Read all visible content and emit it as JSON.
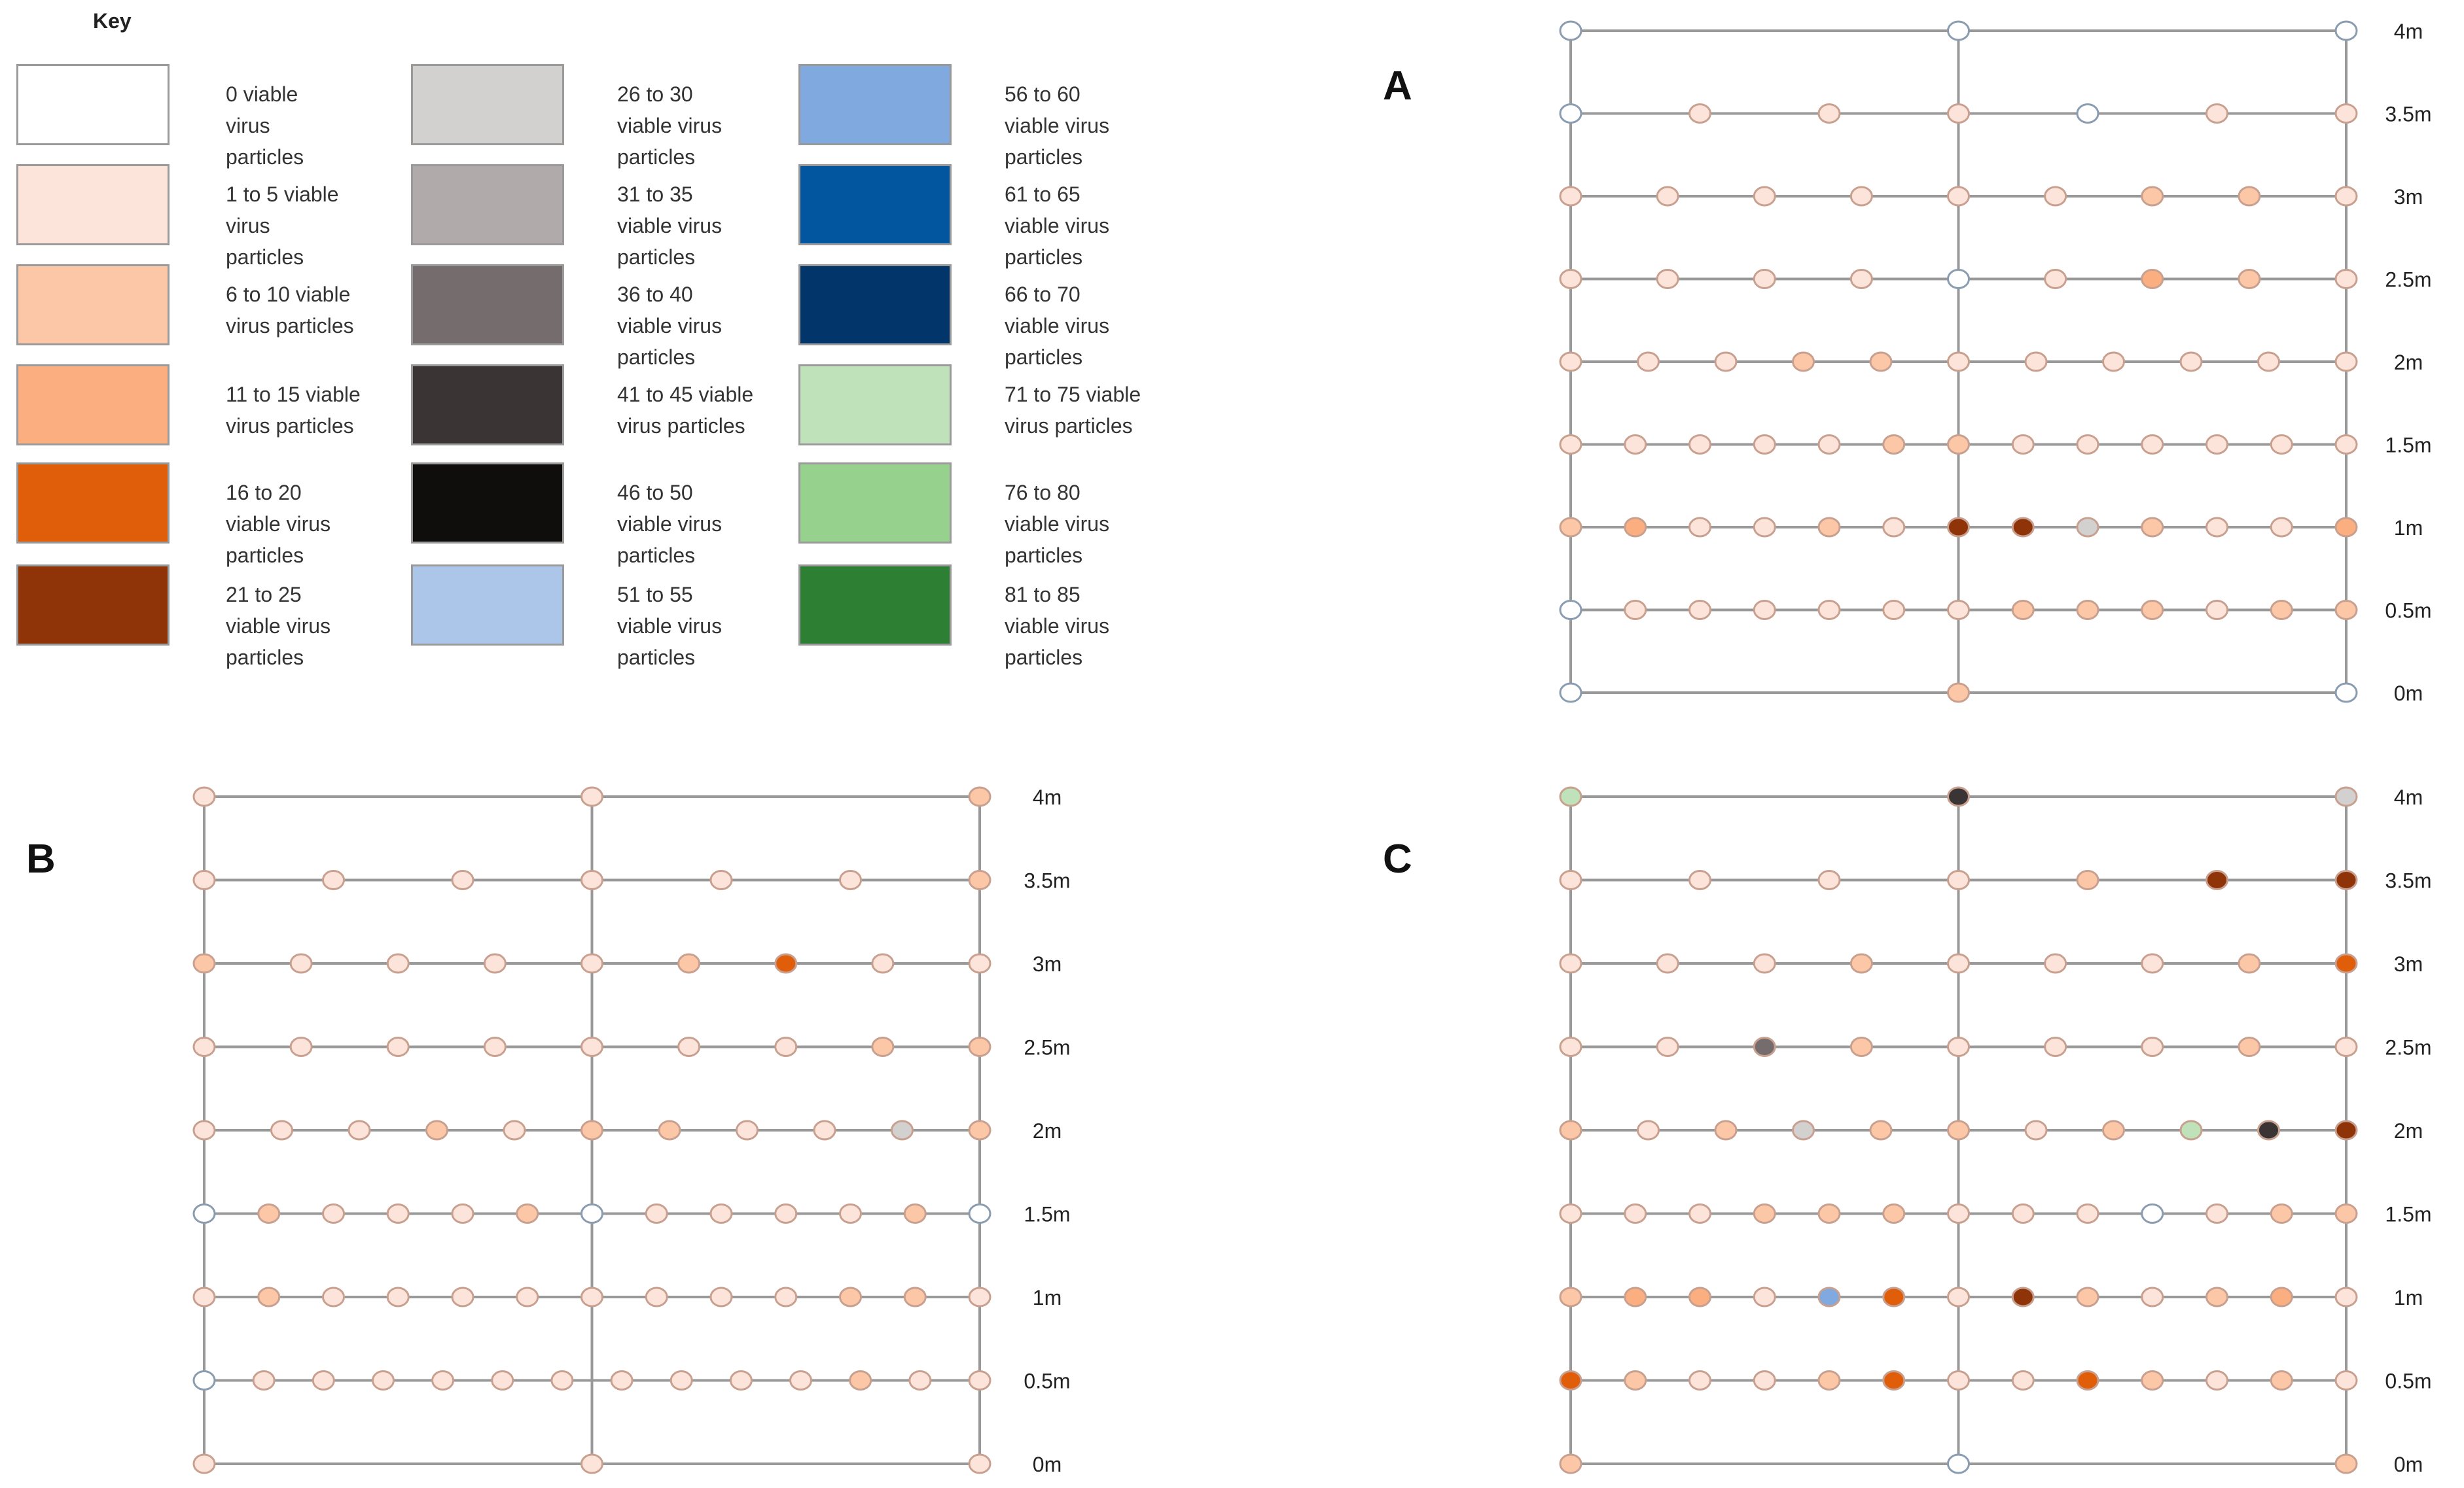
{
  "key": {
    "title": "Key",
    "entries": [
      {
        "label": "0 viable virus particles",
        "lines": [
          "0 viable",
          "virus",
          "particles"
        ],
        "color": "#ffffff"
      },
      {
        "label": "1 to 5 viable virus particles",
        "lines": [
          "1 to 5 viable",
          "virus",
          "particles"
        ],
        "color": "#fde4da"
      },
      {
        "label": "6 to 10 viable virus particles",
        "lines": [
          "6 to 10 viable",
          "virus particles"
        ],
        "color": "#fcc7a6"
      },
      {
        "label": "11 to 15 viable virus particles",
        "lines": [
          "11 to 15 viable",
          "virus particles"
        ],
        "color": "#fbae80"
      },
      {
        "label": "16 to 20 viable virus particles",
        "lines": [
          "16 to 20",
          "viable virus",
          "particles"
        ],
        "color": "#e05e0a"
      },
      {
        "label": "21 to 25 viable virus particles",
        "lines": [
          "21 to 25",
          "viable virus",
          "particles"
        ],
        "color": "#8f3309"
      },
      {
        "label": "26 to 30 viable virus particles",
        "lines": [
          "26 to 30",
          "viable virus",
          "particles"
        ],
        "color": "#d3d0d0"
      },
      {
        "label": "31 to 35 viable virus particles",
        "lines": [
          "31 to 35",
          "viable virus",
          "particles"
        ],
        "color": "#b0aaaa"
      },
      {
        "label": "36 to 40 viable virus particles",
        "lines": [
          "36 to 40",
          "viable virus",
          "particles"
        ],
        "color": "#756d6d"
      },
      {
        "label": "41 to 45 viable virus particles",
        "lines": [
          "41 to 45 viable",
          "virus particles"
        ],
        "color": "#3b3434"
      },
      {
        "label": "46 to 50 viable virus particles",
        "lines": [
          "46 to 50",
          "viable virus",
          "particles"
        ],
        "color": "#100d0d"
      },
      {
        "label": "51 to 55 viable virus particles",
        "lines": [
          "51 to 55",
          "viable virus",
          "particles"
        ],
        "color": "#acc6ea"
      },
      {
        "label": "56 to 60 viable virus particles",
        "lines": [
          "56 to 60",
          "viable virus",
          "particles"
        ],
        "color": "#80a9df"
      },
      {
        "label": "61 to 65 viable virus particles",
        "lines": [
          "61 to 65",
          "viable virus",
          "particles"
        ],
        "color": "#0256a0"
      },
      {
        "label": "66 to 70 viable virus particles",
        "lines": [
          "66 to 70",
          "viable virus",
          "particles"
        ],
        "color": "#02366a"
      },
      {
        "label": "71 to 75 viable virus particles",
        "lines": [
          "71 to 75 viable",
          "virus particles"
        ],
        "color": "#bfe2bb"
      },
      {
        "label": "76 to 80 viable virus particles",
        "lines": [
          "76 to 80",
          "viable virus",
          "particles"
        ],
        "color": "#96d28d"
      },
      {
        "label": "81 to 85 viable virus particles",
        "lines": [
          "81 to 85",
          "viable virus",
          "particles"
        ],
        "color": "#2d8033"
      }
    ]
  },
  "colors": {
    "zero": "#ffffff",
    "bin1": "#fde4da",
    "bin2": "#fcc7a6",
    "bin3": "#fbae80",
    "bin4": "#e05e0a",
    "bin5": "#8f3309",
    "grey1": "#d3d0d0",
    "grey3": "#756d6d",
    "grey4": "#3b3434",
    "blue2": "#80a9df",
    "green1": "#bfe2bb",
    "zero_stroke": "#8a9cb0",
    "marker_stroke": "#c8a090",
    "grid": "#999999"
  },
  "heights": [
    "4m",
    "3.5m",
    "3m",
    "2.5m",
    "2m",
    "1.5m",
    "1m",
    "0.5m",
    "0m"
  ],
  "panels": [
    {
      "id": "A",
      "label": "A",
      "rows": [
        [
          "zero",
          "zero",
          "zero"
        ],
        [
          "zero",
          "bin1",
          "bin1",
          "bin1",
          "zero",
          "bin1",
          "bin1"
        ],
        [
          "bin1",
          "bin1",
          "bin1",
          "bin1",
          "bin1",
          "bin1",
          "bin2",
          "bin2",
          "bin1"
        ],
        [
          "bin1",
          "bin1",
          "bin1",
          "bin1",
          "zero",
          "bin1",
          "bin3",
          "bin2",
          "bin1"
        ],
        [
          "bin1",
          "bin1",
          "bin1",
          "bin2",
          "bin2",
          "bin1",
          "bin1",
          "bin1",
          "bin1",
          "bin1",
          "bin1"
        ],
        [
          "bin1",
          "bin1",
          "bin1",
          "bin1",
          "bin1",
          "bin2",
          "bin2",
          "bin1",
          "bin1",
          "bin1",
          "bin1",
          "bin1",
          "bin1"
        ],
        [
          "bin2",
          "bin3",
          "bin1",
          "bin1",
          "bin2",
          "bin1",
          "bin5",
          "bin5",
          "grey1",
          "bin2",
          "bin1",
          "bin1",
          "bin3"
        ],
        [
          "zero",
          "bin1",
          "bin1",
          "bin1",
          "bin1",
          "bin1",
          "bin1",
          "bin2",
          "bin2",
          "bin2",
          "bin1",
          "bin2",
          "bin2"
        ],
        [
          "zero",
          "bin2",
          "zero"
        ]
      ]
    },
    {
      "id": "B",
      "label": "B",
      "rows": [
        [
          "bin1",
          "bin1",
          "bin2"
        ],
        [
          "bin1",
          "bin1",
          "bin1",
          "bin1",
          "bin1",
          "bin1",
          "bin2"
        ],
        [
          "bin2",
          "bin1",
          "bin1",
          "bin1",
          "bin1",
          "bin2",
          "bin4",
          "bin1",
          "bin1"
        ],
        [
          "bin1",
          "bin1",
          "bin1",
          "bin1",
          "bin1",
          "bin1",
          "bin1",
          "bin2",
          "bin2"
        ],
        [
          "bin1",
          "bin1",
          "bin1",
          "bin2",
          "bin1",
          "bin2",
          "bin2",
          "bin1",
          "bin1",
          "grey1",
          "bin2"
        ],
        [
          "zero",
          "bin2",
          "bin1",
          "bin1",
          "bin1",
          "bin2",
          "zero",
          "bin1",
          "bin1",
          "bin1",
          "bin1",
          "bin2",
          "zero"
        ],
        [
          "bin1",
          "bin2",
          "bin1",
          "bin1",
          "bin1",
          "bin1",
          "bin1",
          "bin1",
          "bin1",
          "bin1",
          "bin2",
          "bin2",
          "bin1"
        ],
        [
          "zero",
          "bin1",
          "bin1",
          "bin1",
          "bin1",
          "bin1",
          "bin1",
          "bin1",
          "bin1",
          "bin1",
          "bin1",
          "bin2",
          "bin1",
          "bin1"
        ],
        [
          "bin1",
          "bin1",
          "bin1"
        ]
      ]
    },
    {
      "id": "C",
      "label": "C",
      "rows": [
        [
          "green1",
          "grey4",
          "grey1"
        ],
        [
          "bin1",
          "bin1",
          "bin1",
          "bin1",
          "bin2",
          "bin5",
          "bin5"
        ],
        [
          "bin1",
          "bin1",
          "bin1",
          "bin2",
          "bin1",
          "bin1",
          "bin1",
          "bin2",
          "bin4"
        ],
        [
          "bin1",
          "bin1",
          "grey3",
          "bin2",
          "bin1",
          "bin1",
          "bin1",
          "bin2",
          "bin1"
        ],
        [
          "bin2",
          "bin1",
          "bin2",
          "grey1",
          "bin2",
          "bin2",
          "bin1",
          "bin2",
          "green1",
          "grey4",
          "bin5"
        ],
        [
          "bin1",
          "bin1",
          "bin1",
          "bin2",
          "bin2",
          "bin2",
          "bin1",
          "bin1",
          "bin1",
          "zero",
          "bin1",
          "bin2",
          "bin2"
        ],
        [
          "bin2",
          "bin3",
          "bin3",
          "bin1",
          "blue2",
          "bin4",
          "bin1",
          "bin5",
          "bin2",
          "bin1",
          "bin2",
          "bin3",
          "bin1"
        ],
        [
          "bin4",
          "bin2",
          "bin1",
          "bin1",
          "bin2",
          "bin4",
          "bin1",
          "bin1",
          "bin4",
          "bin2",
          "bin1",
          "bin2",
          "bin1"
        ],
        [
          "bin2",
          "zero",
          "bin2"
        ]
      ]
    }
  ]
}
